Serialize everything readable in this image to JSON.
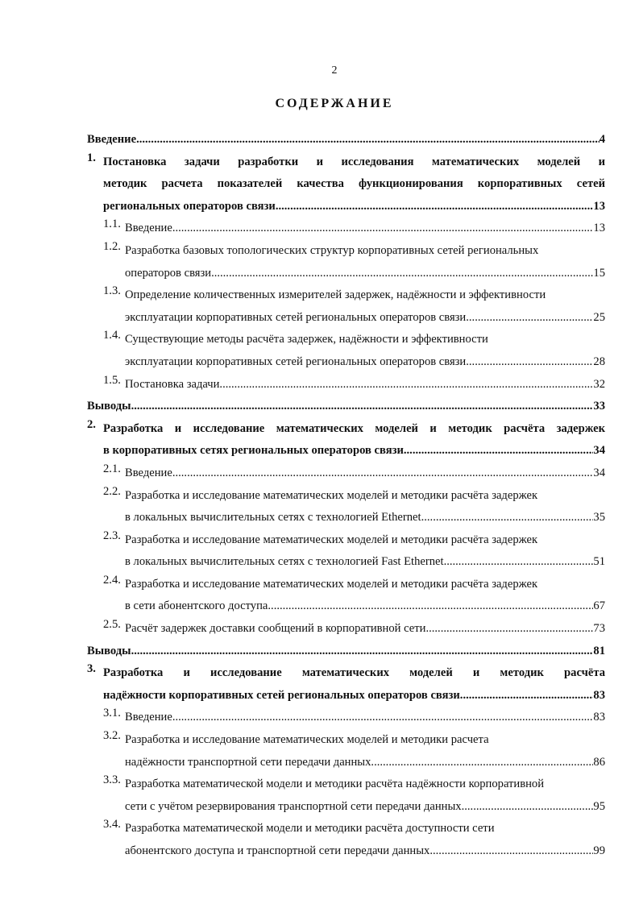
{
  "page_number": "2",
  "title": "СОДЕРЖАНИЕ",
  "entries": [
    {
      "num": "",
      "level": 0,
      "bold": true,
      "lines": [
        "Введение"
      ],
      "page": "4"
    },
    {
      "num": "1.",
      "level": 0,
      "bold": true,
      "lines": [
        "Постановка задачи разработки и исследования математических моделей и",
        "методик  расчета показателей качества функционирования корпоративных сетей",
        "региональных операторов связи"
      ],
      "page": "13"
    },
    {
      "num": "1.1.",
      "level": 1,
      "bold": false,
      "lines": [
        "Введение"
      ],
      "page": "13"
    },
    {
      "num": "1.2.",
      "level": 1,
      "bold": false,
      "lines": [
        "Разработка базовых топологических структур корпоративных сетей региональных",
        "операторов связи"
      ],
      "page": "15"
    },
    {
      "num": "1.3.",
      "level": 1,
      "bold": false,
      "lines": [
        "Определение количественных измерителей задержек, надёжности и эффективности",
        "эксплуатации корпоративных сетей региональных операторов связи"
      ],
      "page": "25"
    },
    {
      "num": "1.4.",
      "level": 1,
      "bold": false,
      "lines": [
        "Существующие методы расчёта задержек, надёжности и эффективности",
        "эксплуатации корпоративных сетей региональных операторов связи"
      ],
      "page": "28"
    },
    {
      "num": "1.5.",
      "level": 1,
      "bold": false,
      "lines": [
        "Постановка задачи"
      ],
      "page": "32"
    },
    {
      "num": "",
      "level": 0,
      "bold": true,
      "lines": [
        "Выводы"
      ],
      "page": "33"
    },
    {
      "num": "2.",
      "level": 0,
      "bold": true,
      "lines": [
        "Разработка и исследование математических моделей и методик расчёта задержек",
        "в корпоративных сетях региональных операторов связи"
      ],
      "page": "34"
    },
    {
      "num": "2.1.",
      "level": 1,
      "bold": false,
      "lines": [
        "Введение"
      ],
      "page": "34"
    },
    {
      "num": "2.2.",
      "level": 1,
      "bold": false,
      "lines": [
        "Разработка и исследование математических моделей и методики расчёта задержек",
        "в локальных вычислительных сетях с технологией Ethernet"
      ],
      "page": "35"
    },
    {
      "num": "2.3.",
      "level": 1,
      "bold": false,
      "lines": [
        "Разработка и исследование математических моделей и методики расчёта задержек",
        "в локальных вычислительных сетях с технологией Fast Ethernet"
      ],
      "page": "51"
    },
    {
      "num": "2.4.",
      "level": 1,
      "bold": false,
      "lines": [
        "Разработка и исследование математических моделей и методики расчёта задержек",
        "в сети абонентского доступа"
      ],
      "page": "67"
    },
    {
      "num": "2.5.",
      "level": 1,
      "bold": false,
      "lines": [
        "Расчёт задержек доставки сообщений в корпоративной сети"
      ],
      "page": "73"
    },
    {
      "num": "",
      "level": 0,
      "bold": true,
      "lines": [
        "Выводы"
      ],
      "page": "81"
    },
    {
      "num": "3.",
      "level": 0,
      "bold": true,
      "lines": [
        "Разработка и исследование математических моделей и методик расчёта",
        "надёжности корпоративных сетей региональных операторов связи"
      ],
      "page": "83"
    },
    {
      "num": "3.1.",
      "level": 1,
      "bold": false,
      "lines": [
        "Введение"
      ],
      "page": "83"
    },
    {
      "num": "3.2.",
      "level": 1,
      "bold": false,
      "lines": [
        "Разработка и исследование математических моделей и методики расчета",
        "надёжности транспортной сети передачи данных"
      ],
      "page": "86"
    },
    {
      "num": "3.3.",
      "level": 1,
      "bold": false,
      "lines": [
        "Разработка математической модели и методики расчёта надёжности корпоративной",
        "сети с учётом резервирования транспортной сети передачи данных"
      ],
      "page": "95"
    },
    {
      "num": "3.4.",
      "level": 1,
      "bold": false,
      "lines": [
        "Разработка математической модели и методики расчёта доступности сети",
        "абонентского доступа и транспортной сети передачи данных"
      ],
      "page": "99"
    }
  ]
}
